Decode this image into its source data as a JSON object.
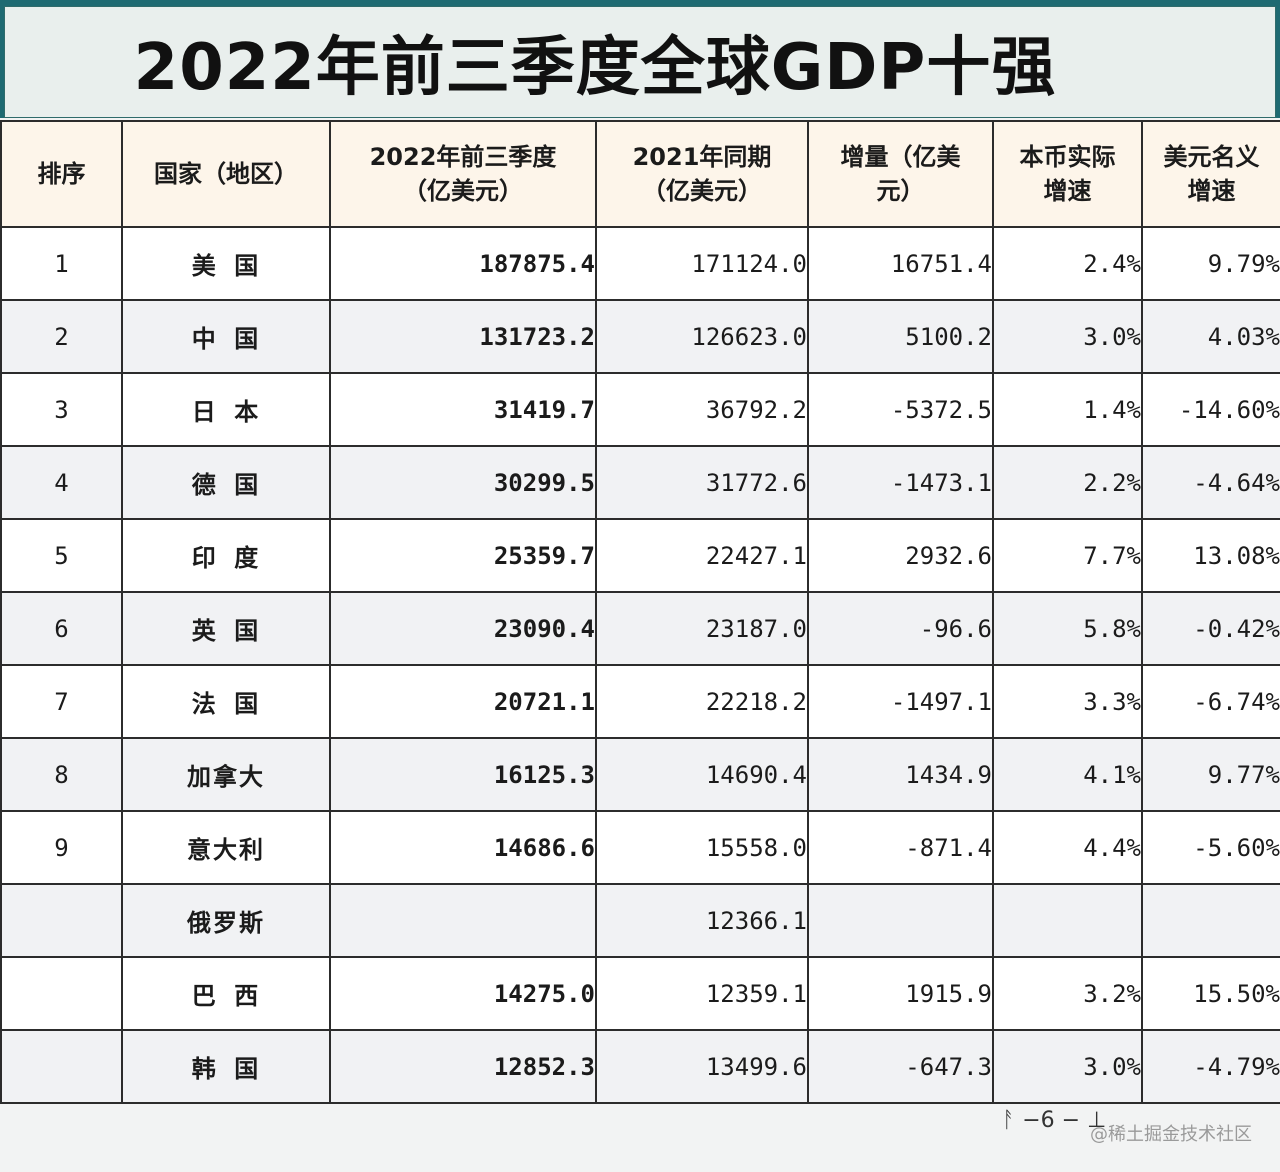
{
  "title": "2022年前三季度全球GDP十强",
  "headers": [
    [
      "排序"
    ],
    [
      "国家（地区）"
    ],
    [
      "2022年前三季度",
      "（亿美元）"
    ],
    [
      "2021年同期",
      "（亿美元）"
    ],
    [
      "增量（亿美",
      "元）"
    ],
    [
      "本币实际",
      "增速"
    ],
    [
      "美元名义",
      "增速"
    ]
  ],
  "rows": [
    {
      "rank": "1",
      "country": "美  国",
      "gdp2022": "187875.4",
      "gdp2021": "171124.0",
      "increase": "16751.4",
      "local_growth": "2.4%",
      "usd_growth": "9.79%"
    },
    {
      "rank": "2",
      "country": "中  国",
      "gdp2022": "131723.2",
      "gdp2021": "126623.0",
      "increase": "5100.2",
      "local_growth": "3.0%",
      "usd_growth": "4.03%"
    },
    {
      "rank": "3",
      "country": "日  本",
      "gdp2022": "31419.7",
      "gdp2021": "36792.2",
      "increase": "-5372.5",
      "local_growth": "1.4%",
      "usd_growth": "-14.60%"
    },
    {
      "rank": "4",
      "country": "德  国",
      "gdp2022": "30299.5",
      "gdp2021": "31772.6",
      "increase": "-1473.1",
      "local_growth": "2.2%",
      "usd_growth": "-4.64%"
    },
    {
      "rank": "5",
      "country": "印  度",
      "gdp2022": "25359.7",
      "gdp2021": "22427.1",
      "increase": "2932.6",
      "local_growth": "7.7%",
      "usd_growth": "13.08%"
    },
    {
      "rank": "6",
      "country": "英  国",
      "gdp2022": "23090.4",
      "gdp2021": "23187.0",
      "increase": "-96.6",
      "local_growth": "5.8%",
      "usd_growth": "-0.42%"
    },
    {
      "rank": "7",
      "country": "法  国",
      "gdp2022": "20721.1",
      "gdp2021": "22218.2",
      "increase": "-1497.1",
      "local_growth": "3.3%",
      "usd_growth": "-6.74%"
    },
    {
      "rank": "8",
      "country": "加拿大",
      "gdp2022": "16125.3",
      "gdp2021": "14690.4",
      "increase": "1434.9",
      "local_growth": "4.1%",
      "usd_growth": "9.77%"
    },
    {
      "rank": "9",
      "country": "意大利",
      "gdp2022": "14686.6",
      "gdp2021": "15558.0",
      "increase": "-871.4",
      "local_growth": "4.4%",
      "usd_growth": "-5.60%"
    },
    {
      "rank": "",
      "country": "俄罗斯",
      "gdp2022": "",
      "gdp2021": "12366.1",
      "increase": "",
      "local_growth": "",
      "usd_growth": ""
    },
    {
      "rank": "",
      "country": "巴  西",
      "gdp2022": "14275.0",
      "gdp2021": "12359.1",
      "increase": "1915.9",
      "local_growth": "3.2%",
      "usd_growth": "15.50%"
    },
    {
      "rank": "",
      "country": "韩  国",
      "gdp2022": "12852.3",
      "gdp2021": "13499.6",
      "increase": "-647.3",
      "local_growth": "3.0%",
      "usd_growth": "-4.79%"
    }
  ],
  "colors": {
    "title_band": "#1e6a72",
    "header_bg": "#fdf5ea",
    "negative": "#b5371e",
    "border": "#2c2c2c"
  },
  "watermark": "@稀土掘金技术社区"
}
